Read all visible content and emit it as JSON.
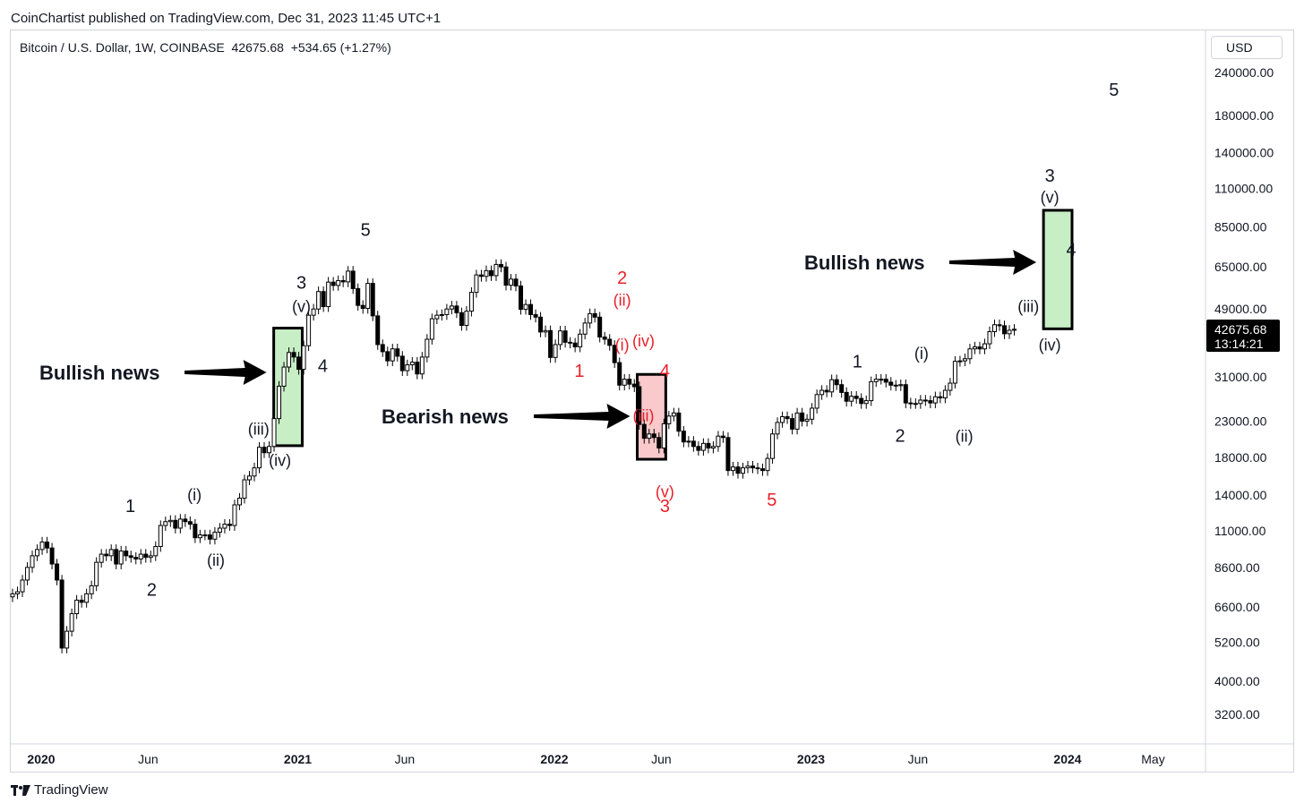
{
  "header": {
    "publisher_text": "CoinChartist published on TradingView.com, Dec 31, 2023 11:45 UTC+1",
    "symbol_text": "Bitcoin / U.S. Dollar, 1W, COINBASE  42675.68  +534.65 (+1.27%)",
    "currency": "USD"
  },
  "footer": {
    "brand": "TradingView"
  },
  "colors": {
    "candle_up": "#ffffff",
    "candle_down": "#000000",
    "bull_box": "#c8eec6",
    "bear_box": "#f9c9cb",
    "red_wave": "#e8202a",
    "black_wave": "#131722"
  },
  "chart_data": {
    "type": "candlestick",
    "title": "",
    "xlabel": "",
    "ylabel": "",
    "y_scale": "log",
    "y_ticks": [
      "240000.00",
      "180000.00",
      "140000.00",
      "110000.00",
      "85000.00",
      "65000.00",
      "49000.00",
      "31000.00",
      "23000.00",
      "18000.00",
      "14000.00",
      "11000.00",
      "8600.00",
      "6600.00",
      "5200.00",
      "4000.00",
      "3200.00"
    ],
    "x_ticks": [
      {
        "label": "2020",
        "year": true,
        "date": "2020-01"
      },
      {
        "label": "Jun",
        "year": false,
        "date": "2020-06"
      },
      {
        "label": "2021",
        "year": true,
        "date": "2021-01"
      },
      {
        "label": "Jun",
        "year": false,
        "date": "2021-06"
      },
      {
        "label": "2022",
        "year": true,
        "date": "2022-01"
      },
      {
        "label": "Jun",
        "year": false,
        "date": "2022-06"
      },
      {
        "label": "2023",
        "year": true,
        "date": "2023-01"
      },
      {
        "label": "Jun",
        "year": false,
        "date": "2023-06"
      },
      {
        "label": "2024",
        "year": true,
        "date": "2024-01"
      },
      {
        "label": "May",
        "year": false,
        "date": "2024-05"
      }
    ],
    "last_price": {
      "value": "42675.68",
      "countdown": "13:14:21"
    },
    "weekly_closes": [
      7200,
      7300,
      7900,
      8600,
      9300,
      9700,
      10200,
      9800,
      8800,
      7900,
      5000,
      5600,
      6300,
      6900,
      6800,
      7200,
      7600,
      8900,
      9400,
      9300,
      9700,
      8800,
      9600,
      9300,
      9200,
      9100,
      9400,
      9200,
      9300,
      9900,
      11400,
      11700,
      11800,
      11200,
      11900,
      11700,
      11500,
      10500,
      10700,
      10700,
      10400,
      10900,
      11200,
      11500,
      11400,
      13100,
      13700,
      15500,
      15900,
      16800,
      19300,
      18600,
      19400,
      23400,
      29100,
      33100,
      36500,
      35400,
      32600,
      38200,
      46900,
      48900,
      55000,
      49700,
      58600,
      57300,
      59200,
      58700,
      63100,
      56100,
      50100,
      49100,
      58100,
      46700,
      38500,
      36700,
      34500,
      37400,
      35600,
      32300,
      33600,
      34200,
      31600,
      35400,
      39900,
      45800,
      46900,
      47100,
      48900,
      49900,
      47700,
      43800,
      48200,
      54700,
      61500,
      60900,
      63300,
      61200,
      66000,
      64900,
      57400,
      59800,
      57100,
      48800,
      50400,
      47100,
      46300,
      41900,
      42300,
      35300,
      38500,
      42200,
      39100,
      38900,
      37900,
      41300,
      44500,
      47400,
      46300,
      40500,
      39900,
      38300,
      34100,
      29300,
      30500,
      29500,
      29000,
      22500,
      20500,
      21100,
      20600,
      19200,
      22600,
      23800,
      24300,
      21500,
      20000,
      20100,
      19400,
      18900,
      19800,
      19200,
      19400,
      20800,
      20600,
      16500,
      16900,
      16200,
      16800,
      17000,
      16800,
      16700,
      16500,
      17900,
      21100,
      22800,
      23700,
      23400,
      21800,
      24300,
      23000,
      23300,
      25100,
      27500,
      28300,
      28000,
      30400,
      29400,
      27900,
      26300,
      27200,
      26800,
      25900,
      26400,
      30000,
      30500,
      30500,
      29900,
      29300,
      29200,
      29400,
      26000,
      25900,
      25900,
      26500,
      26400,
      26000,
      27100,
      26900,
      28300,
      29700,
      34400,
      34500,
      35000,
      37400,
      37900,
      37400,
      38700,
      42000,
      44000,
      43700,
      41400,
      42400,
      42675
    ],
    "wave_labels": [
      {
        "text": "1",
        "color": "black",
        "date": "2020-05",
        "price": 12500
      },
      {
        "text": "2",
        "color": "black",
        "date": "2020-06",
        "price": 7100
      },
      {
        "text": "(i)",
        "color": "black",
        "date": "2020-08",
        "price": 13500
      },
      {
        "text": "(ii)",
        "color": "black",
        "date": "2020-09",
        "price": 8700
      },
      {
        "text": "(iii)",
        "color": "black",
        "date": "2020-11",
        "price": 21000
      },
      {
        "text": "(iv)",
        "color": "black",
        "date": "2020-12",
        "price": 17000
      },
      {
        "text": "3",
        "color": "black",
        "date": "2021-01",
        "price": 56000
      },
      {
        "text": "(v)",
        "color": "black",
        "date": "2021-01",
        "price": 48000
      },
      {
        "text": "4",
        "color": "black",
        "date": "2021-02",
        "price": 32000
      },
      {
        "text": "5",
        "color": "black",
        "date": "2021-04",
        "price": 80000
      },
      {
        "text": "1",
        "color": "red",
        "date": "2022-02",
        "price": 31000
      },
      {
        "text": "2",
        "color": "red",
        "date": "2022-04",
        "price": 58000
      },
      {
        "text": "(ii)",
        "color": "red",
        "date": "2022-04",
        "price": 50000
      },
      {
        "text": "(i)",
        "color": "red",
        "date": "2022-04",
        "price": 37000
      },
      {
        "text": "(iv)",
        "color": "red",
        "date": "2022-05",
        "price": 38000
      },
      {
        "text": "(iii)",
        "color": "red",
        "date": "2022-05",
        "price": 23000
      },
      {
        "text": "(v)",
        "color": "red",
        "date": "2022-06",
        "price": 13800
      },
      {
        "text": "3",
        "color": "red",
        "date": "2022-06",
        "price": 12500
      },
      {
        "text": "4",
        "color": "red",
        "date": "2022-06",
        "price": 31000
      },
      {
        "text": "5",
        "color": "red",
        "date": "2022-11",
        "price": 13000
      },
      {
        "text": "1",
        "color": "black",
        "date": "2023-03",
        "price": 33000
      },
      {
        "text": "(i)",
        "color": "black",
        "date": "2023-06",
        "price": 35000
      },
      {
        "text": "2",
        "color": "black",
        "date": "2023-05",
        "price": 20000
      },
      {
        "text": "(ii)",
        "color": "black",
        "date": "2023-08",
        "price": 20000
      },
      {
        "text": "(iii)",
        "color": "black",
        "date": "2023-11",
        "price": 48000
      },
      {
        "text": "(iv)",
        "color": "black",
        "date": "2023-12",
        "price": 37000
      },
      {
        "text": "3",
        "color": "black",
        "date": "2023-12",
        "price": 115000
      },
      {
        "text": "(v)",
        "color": "black",
        "date": "2023-12",
        "price": 100000
      },
      {
        "text": "4",
        "color": "black",
        "date": "2024-01",
        "price": 70000
      },
      {
        "text": "5",
        "color": "black",
        "date": "2024-03",
        "price": 205000
      }
    ],
    "annotations": [
      {
        "text": "Bullish news",
        "type": "bull",
        "box": {
          "date_start": "2020-12",
          "date_end": "2021-01",
          "price_low": 19500,
          "price_high": 43000
        }
      },
      {
        "text": "Bearish news",
        "type": "bear",
        "box": {
          "date_start": "2022-05",
          "date_end": "2022-06",
          "price_low": 17800,
          "price_high": 31500
        }
      },
      {
        "text": "Bullish news",
        "type": "bull",
        "box": {
          "date_start": "2023-12",
          "date_end": "2024-01",
          "price_low": 42800,
          "price_high": 95000
        }
      }
    ]
  }
}
